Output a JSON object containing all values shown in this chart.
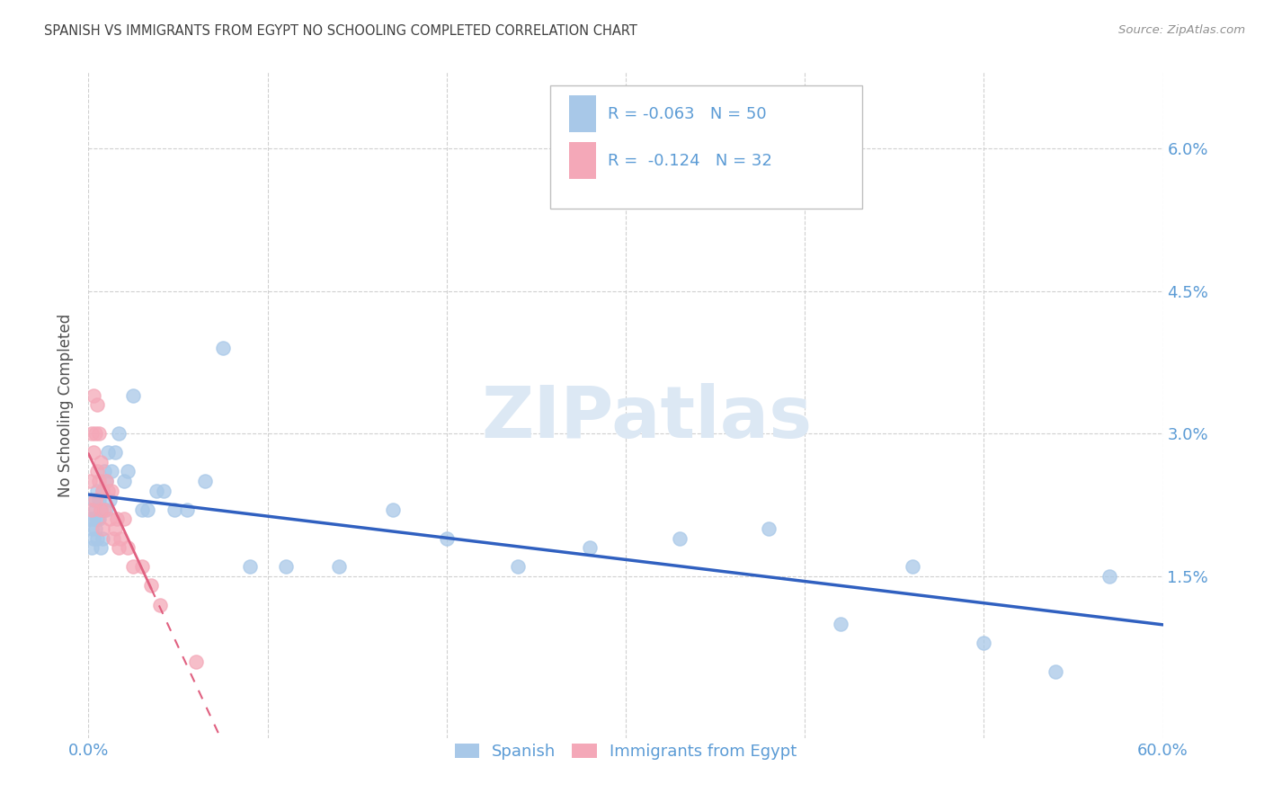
{
  "title": "SPANISH VS IMMIGRANTS FROM EGYPT NO SCHOOLING COMPLETED CORRELATION CHART",
  "source": "Source: ZipAtlas.com",
  "ylabel": "No Schooling Completed",
  "xlim": [
    0.0,
    0.6
  ],
  "ylim": [
    -0.002,
    0.068
  ],
  "yticks": [
    0.015,
    0.03,
    0.045,
    0.06
  ],
  "ytick_labels": [
    "1.5%",
    "3.0%",
    "4.5%",
    "6.0%"
  ],
  "xticks": [
    0.0,
    0.1,
    0.2,
    0.3,
    0.4,
    0.5,
    0.6
  ],
  "xtick_labels_show": [
    "0.0%",
    "60.0%"
  ],
  "color_spanish": "#a8c8e8",
  "color_egypt": "#f4a8b8",
  "color_trend_spanish": "#3060c0",
  "color_trend_egypt": "#e06080",
  "watermark_color": "#dce8f4",
  "title_color": "#404040",
  "axis_color": "#5b9bd5",
  "grid_color": "#d0d0d0",
  "spanish_x": [
    0.001,
    0.002,
    0.002,
    0.003,
    0.003,
    0.003,
    0.004,
    0.004,
    0.005,
    0.005,
    0.005,
    0.006,
    0.006,
    0.007,
    0.007,
    0.008,
    0.008,
    0.009,
    0.01,
    0.01,
    0.011,
    0.012,
    0.013,
    0.015,
    0.017,
    0.02,
    0.022,
    0.025,
    0.03,
    0.033,
    0.038,
    0.042,
    0.048,
    0.055,
    0.065,
    0.075,
    0.09,
    0.11,
    0.14,
    0.17,
    0.2,
    0.24,
    0.28,
    0.33,
    0.38,
    0.42,
    0.46,
    0.5,
    0.54,
    0.57
  ],
  "spanish_y": [
    0.021,
    0.02,
    0.018,
    0.023,
    0.021,
    0.019,
    0.022,
    0.02,
    0.024,
    0.021,
    0.019,
    0.023,
    0.021,
    0.022,
    0.018,
    0.024,
    0.019,
    0.026,
    0.022,
    0.025,
    0.028,
    0.023,
    0.026,
    0.028,
    0.03,
    0.025,
    0.026,
    0.034,
    0.022,
    0.022,
    0.024,
    0.024,
    0.022,
    0.022,
    0.025,
    0.039,
    0.016,
    0.016,
    0.016,
    0.022,
    0.019,
    0.016,
    0.018,
    0.019,
    0.02,
    0.01,
    0.016,
    0.008,
    0.005,
    0.015
  ],
  "egypt_x": [
    0.001,
    0.002,
    0.002,
    0.003,
    0.003,
    0.004,
    0.004,
    0.005,
    0.005,
    0.006,
    0.006,
    0.007,
    0.007,
    0.008,
    0.008,
    0.009,
    0.01,
    0.011,
    0.012,
    0.013,
    0.014,
    0.015,
    0.016,
    0.017,
    0.018,
    0.02,
    0.022,
    0.025,
    0.03,
    0.035,
    0.04,
    0.06
  ],
  "egypt_y": [
    0.025,
    0.03,
    0.022,
    0.034,
    0.028,
    0.03,
    0.023,
    0.033,
    0.026,
    0.025,
    0.03,
    0.022,
    0.027,
    0.024,
    0.02,
    0.022,
    0.025,
    0.024,
    0.021,
    0.024,
    0.019,
    0.02,
    0.021,
    0.018,
    0.019,
    0.021,
    0.018,
    0.016,
    0.016,
    0.014,
    0.012,
    0.006
  ]
}
